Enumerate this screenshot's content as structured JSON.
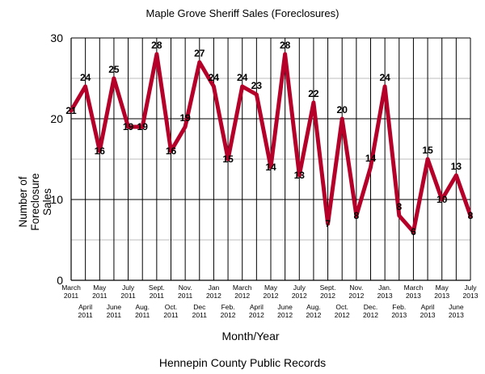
{
  "chart_data": {
    "type": "line",
    "title": "Maple Grove Sheriff Sales (Foreclosures)",
    "xlabel": "Month/Year",
    "ylabel": "Number of Foreclosure Sales",
    "footer": "Hennepin County Public Records",
    "ylim": [
      0,
      30
    ],
    "yticks": [
      0,
      10,
      20,
      30
    ],
    "grid": true,
    "color": "#b5002a",
    "categories": [
      [
        "March",
        "2011"
      ],
      [
        "April",
        "2011"
      ],
      [
        "May",
        "2011"
      ],
      [
        "June",
        "2011"
      ],
      [
        "July",
        "2011"
      ],
      [
        "Aug.",
        "2011"
      ],
      [
        "Sept.",
        "2011"
      ],
      [
        "Oct.",
        "2011"
      ],
      [
        "Nov.",
        "2011"
      ],
      [
        "Dec",
        "2011"
      ],
      [
        "Jan",
        "2012"
      ],
      [
        "Feb.",
        "2012"
      ],
      [
        "March",
        "2012"
      ],
      [
        "April",
        "2012"
      ],
      [
        "May",
        "2012"
      ],
      [
        "June",
        "2012"
      ],
      [
        "July",
        "2012"
      ],
      [
        "Aug.",
        "2012"
      ],
      [
        "Sept.",
        "2012"
      ],
      [
        "Oct.",
        "2012"
      ],
      [
        "Nov.",
        "2012"
      ],
      [
        "Dec.",
        "2012"
      ],
      [
        "Jan.",
        "2013"
      ],
      [
        "Feb.",
        "2013"
      ],
      [
        "March",
        "2013"
      ],
      [
        "April",
        "2013"
      ],
      [
        "May",
        "2013"
      ],
      [
        "June",
        "2013"
      ],
      [
        "July",
        "2013"
      ]
    ],
    "values": [
      21,
      24,
      16,
      25,
      19,
      19,
      28,
      16,
      19,
      27,
      24,
      15,
      24,
      23,
      14,
      28,
      13,
      22,
      7,
      20,
      8,
      14,
      24,
      8,
      6,
      15,
      10,
      13,
      8
    ]
  }
}
